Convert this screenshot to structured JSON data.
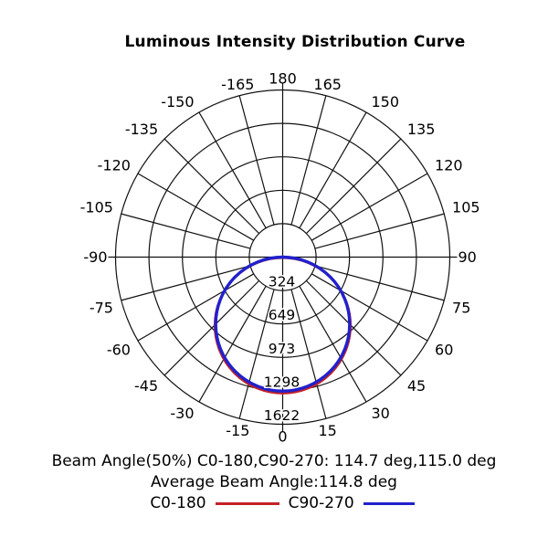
{
  "title": "Luminous Intensity Distribution Curve",
  "chart_data": {
    "type": "line",
    "subtype": "polar-luminous-intensity-distribution",
    "title": "Luminous Intensity Distribution Curve",
    "angle_unit": "deg",
    "angle_zero_position": "bottom",
    "angle_tick_step_deg": 15,
    "angle_tick_labels": [
      0,
      15,
      30,
      45,
      60,
      75,
      90,
      105,
      120,
      135,
      150,
      165,
      180,
      -165,
      -150,
      -135,
      -120,
      -105,
      -90,
      -75,
      -60,
      -45,
      -30,
      -15
    ],
    "radial_tick_values": [
      324,
      649,
      973,
      1298,
      1622
    ],
    "radial_axis_max": 1622,
    "grid": true,
    "legend_position": "bottom",
    "series": [
      {
        "name": "C0-180",
        "color": "#c32227",
        "shape": "cosine-lobe",
        "peak_intensity": 1315,
        "intensity_at_deg0": 1315,
        "intensity_at_deg90": 0,
        "beam_angle_50pct_deg": 114.7
      },
      {
        "name": "C90-270",
        "color": "#2121cc",
        "shape": "cosine-lobe",
        "peak_intensity": 1300,
        "intensity_at_deg0": 1300,
        "intensity_at_deg90": 0,
        "beam_angle_50pct_deg": 115.0
      }
    ],
    "annotations": [
      "Beam Angle(50%) C0-180,C90-270: 114.7 deg,115.0 deg",
      "Average Beam Angle:114.8 deg"
    ]
  },
  "footer": {
    "beam_angle_line": "Beam Angle(50%) C0-180,C90-270: 114.7 deg,115.0 deg",
    "average_line": "Average Beam Angle:114.8 deg"
  },
  "legend": {
    "items": [
      {
        "label": "C0-180",
        "color": "#c32227"
      },
      {
        "label": "C90-270",
        "color": "#2121cc"
      }
    ]
  }
}
